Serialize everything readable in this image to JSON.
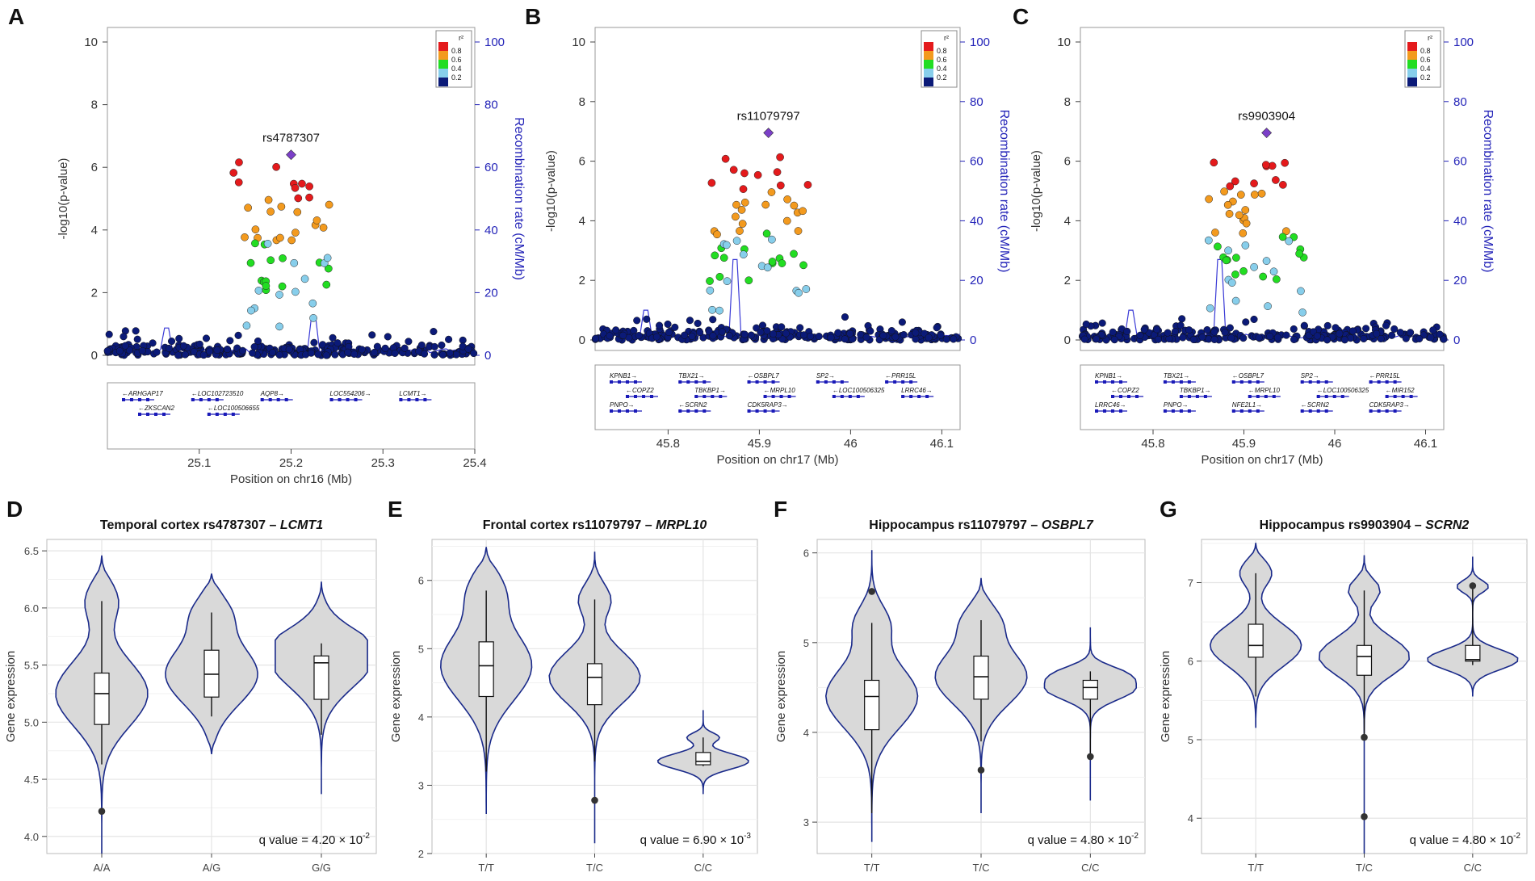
{
  "figure": {
    "panel_labels": [
      "A",
      "B",
      "C",
      "D",
      "E",
      "F",
      "G"
    ]
  },
  "chart_data": [
    {
      "type": "scatter",
      "panel": "A",
      "title": "",
      "lead_snp": "rs4787307",
      "xlabel": "Position on chr16 (Mb)",
      "ylabel_left": "-log10(p-value)",
      "ylabel_right": "Recombination rate (cM/Mb)",
      "xlim": [
        25.0,
        25.4
      ],
      "ylim_left": [
        0,
        10
      ],
      "ylim_right": [
        0,
        100
      ],
      "x_ticks": [
        "25.1",
        "25.2",
        "25.3",
        "25.4"
      ],
      "x_tick_values": [
        25.1,
        25.2,
        25.3,
        25.4
      ],
      "y_ticks_left": [
        "0",
        "2",
        "4",
        "6",
        "8",
        "10"
      ],
      "y_ticks_right": [
        "0",
        "20",
        "40",
        "60",
        "80",
        "100"
      ],
      "legend": {
        "title": "r²",
        "labels": [
          "0.8",
          "0.6",
          "0.4",
          "0.2"
        ]
      },
      "lead_point": {
        "x": 25.2,
        "y": 6.4
      },
      "recomb_peaks": [
        [
          25.065,
          8.7
        ],
        [
          25.225,
          12.5
        ]
      ],
      "genes": [
        "←ARHGAP17",
        "←LOC102723510",
        "AQP8→",
        "LOC554206→",
        "LCMT1→",
        "←ZKSCAN2",
        "←LOC100506655"
      ]
    },
    {
      "type": "scatter",
      "panel": "B",
      "title": "",
      "lead_snp": "rs11079797",
      "xlabel": "Position on chr17 (Mb)",
      "ylabel_left": "-log10(p-value)",
      "ylabel_right": "Recombination rate (cM/Mb)",
      "xlim": [
        45.72,
        46.12
      ],
      "ylim_left": [
        0,
        10
      ],
      "ylim_right": [
        0,
        100
      ],
      "x_ticks": [
        "45.8",
        "45.9",
        "46",
        "46.1"
      ],
      "x_tick_values": [
        45.8,
        45.9,
        46.0,
        46.1
      ],
      "y_ticks_left": [
        "0",
        "2",
        "4",
        "6",
        "8",
        "10"
      ],
      "y_ticks_right": [
        "0",
        "20",
        "40",
        "60",
        "80",
        "100"
      ],
      "legend": {
        "title": "r²",
        "labels": [
          "0.8",
          "0.6",
          "0.4",
          "0.2"
        ]
      },
      "lead_point": {
        "x": 45.91,
        "y": 6.95
      },
      "recomb_peaks": [
        [
          45.873,
          27
        ],
        [
          45.775,
          10
        ]
      ],
      "genes": [
        "KPNB1→",
        "TBX21→",
        "←OSBPL7",
        "SP2→",
        "←PRR15L",
        "←COPZ2",
        "TBKBP1→",
        "←MRPL10",
        "←LOC100506325",
        "LRRC46→",
        "PNPO→",
        "←SCRN2",
        "CDK5RAP3→"
      ]
    },
    {
      "type": "scatter",
      "panel": "C",
      "title": "",
      "lead_snp": "rs9903904",
      "xlabel": "Position on chr17 (Mb)",
      "ylabel_left": "-log10(p-value)",
      "ylabel_right": "Recombination rate (cM/Mb)",
      "xlim": [
        45.72,
        46.12
      ],
      "ylim_left": [
        0,
        10
      ],
      "ylim_right": [
        0,
        100
      ],
      "x_ticks": [
        "45.8",
        "45.9",
        "46",
        "46.1"
      ],
      "x_tick_values": [
        45.8,
        45.9,
        46.0,
        46.1
      ],
      "y_ticks_left": [
        "0",
        "2",
        "4",
        "6",
        "8",
        "10"
      ],
      "y_ticks_right": [
        "0",
        "20",
        "40",
        "60",
        "80",
        "100"
      ],
      "legend": {
        "title": "r²",
        "labels": [
          "0.8",
          "0.6",
          "0.4",
          "0.2"
        ]
      },
      "lead_point": {
        "x": 45.925,
        "y": 6.95
      },
      "recomb_peaks": [
        [
          45.873,
          27
        ],
        [
          45.775,
          10
        ]
      ],
      "genes": [
        "KPNB1→",
        "TBX21→",
        "←OSBPL7",
        "SP2→",
        "←PRR15L",
        "←COPZ2",
        "TBKBP1→",
        "←MRPL10",
        "←LOC100506325",
        "←MIR152",
        "LRRC46→",
        "PNPO→",
        "NFE2L1→",
        "←SCRN2",
        "CDK5RAP3→"
      ]
    },
    {
      "type": "violin",
      "panel": "D",
      "title": "Temporal cortex rs4787307 – ",
      "gene": "LCMT1",
      "ylabel": "Gene expression",
      "ylim": [
        3.85,
        6.6
      ],
      "y_ticks": [
        "4.0",
        "4.5",
        "5.0",
        "5.5",
        "6.0",
        "6.5"
      ],
      "y_tick_values": [
        4.0,
        4.5,
        5.0,
        5.5,
        6.0,
        6.5
      ],
      "categories": [
        "A/A",
        "A/G",
        "G/G"
      ],
      "boxes": [
        {
          "min": 4.63,
          "q1": 4.98,
          "median": 5.25,
          "q3": 5.43,
          "max": 6.06,
          "violin_min": 3.85,
          "violin_max": 6.46,
          "outliers": [
            4.22
          ]
        },
        {
          "min": 5.05,
          "q1": 5.22,
          "median": 5.42,
          "q3": 5.63,
          "max": 5.96,
          "violin_min": 4.72,
          "violin_max": 6.3,
          "outliers": []
        },
        {
          "min": 4.89,
          "q1": 5.2,
          "median": 5.52,
          "q3": 5.58,
          "max": 5.69,
          "violin_min": 4.37,
          "violin_max": 6.23,
          "outliers": []
        }
      ],
      "annotation": "q value = 4.20 × 10",
      "annotation_exp": "-2"
    },
    {
      "type": "violin",
      "panel": "E",
      "title": "Frontal cortex rs11079797 – ",
      "gene": "MRPL10",
      "ylabel": "Gene expression",
      "ylim": [
        2.0,
        6.6
      ],
      "y_ticks": [
        "2",
        "3",
        "4",
        "5",
        "6"
      ],
      "y_tick_values": [
        2,
        3,
        4,
        5,
        6
      ],
      "categories": [
        "T/T",
        "T/C",
        "C/C"
      ],
      "boxes": [
        {
          "min": 3.2,
          "q1": 4.3,
          "median": 4.75,
          "q3": 5.1,
          "max": 5.85,
          "violin_min": 2.58,
          "violin_max": 6.48,
          "outliers": []
        },
        {
          "min": 3.35,
          "q1": 4.18,
          "median": 4.58,
          "q3": 4.78,
          "max": 5.72,
          "violin_min": 2.15,
          "violin_max": 6.42,
          "outliers": [
            2.78
          ]
        },
        {
          "min": 3.28,
          "q1": 3.3,
          "median": 3.35,
          "q3": 3.48,
          "max": 3.7,
          "violin_min": 2.87,
          "violin_max": 4.1,
          "outliers": []
        }
      ],
      "annotation": "q value = 6.90 × 10",
      "annotation_exp": "-3"
    },
    {
      "type": "violin",
      "panel": "F",
      "title": "Hippocampus rs11079797 – ",
      "gene": "OSBPL7",
      "ylabel": "Gene expression",
      "ylim": [
        2.65,
        6.15
      ],
      "y_ticks": [
        "3",
        "4",
        "5",
        "6"
      ],
      "y_tick_values": [
        3,
        4,
        5,
        6
      ],
      "categories": [
        "T/T",
        "T/C",
        "C/C"
      ],
      "boxes": [
        {
          "min": 3.1,
          "q1": 4.03,
          "median": 4.4,
          "q3": 4.58,
          "max": 5.22,
          "violin_min": 2.78,
          "violin_max": 6.03,
          "outliers": [
            5.57
          ]
        },
        {
          "min": 3.9,
          "q1": 4.37,
          "median": 4.62,
          "q3": 4.85,
          "max": 5.25,
          "violin_min": 3.1,
          "violin_max": 5.72,
          "outliers": [
            3.58
          ]
        },
        {
          "min": 3.73,
          "q1": 4.37,
          "median": 4.5,
          "q3": 4.58,
          "max": 4.68,
          "violin_min": 3.24,
          "violin_max": 5.17,
          "outliers": [
            3.73
          ]
        }
      ],
      "annotation": "q value = 4.80 × 10",
      "annotation_exp": "-2"
    },
    {
      "type": "violin",
      "panel": "G",
      "title": "Hippocampus rs9903904 – ",
      "gene": "SCRN2",
      "ylabel": "Gene expression",
      "ylim": [
        3.55,
        7.55
      ],
      "y_ticks": [
        "4",
        "5",
        "6",
        "7"
      ],
      "y_tick_values": [
        4,
        5,
        6,
        7
      ],
      "categories": [
        "T/T",
        "T/C",
        "C/C"
      ],
      "boxes": [
        {
          "min": 5.55,
          "q1": 6.05,
          "median": 6.2,
          "q3": 6.47,
          "max": 7.12,
          "violin_min": 5.15,
          "violin_max": 7.5,
          "outliers": []
        },
        {
          "min": 5.05,
          "q1": 5.82,
          "median": 6.06,
          "q3": 6.2,
          "max": 6.9,
          "violin_min": 3.55,
          "violin_max": 7.35,
          "outliers": [
            4.02,
            5.03
          ]
        },
        {
          "min": 5.95,
          "q1": 6.0,
          "median": 6.02,
          "q3": 6.2,
          "max": 6.95,
          "violin_min": 5.55,
          "violin_max": 7.33,
          "outliers": [
            6.96
          ]
        }
      ],
      "annotation": "q value = 4.80 × 10",
      "annotation_exp": "-2"
    }
  ]
}
